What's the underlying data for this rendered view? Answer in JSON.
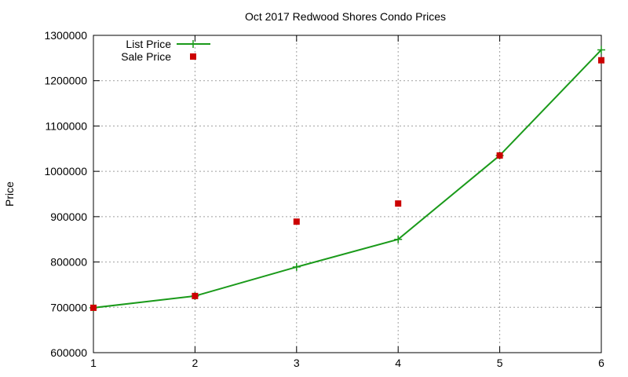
{
  "chart_data": {
    "type": "line",
    "title": "Oct 2017 Redwood Shores Condo Prices",
    "xlabel": "",
    "ylabel": "Price",
    "x": [
      1,
      2,
      3,
      4,
      5,
      6
    ],
    "xlim": [
      1,
      6
    ],
    "ylim": [
      600000,
      1300000
    ],
    "xticks": [
      1,
      2,
      3,
      4,
      5,
      6
    ],
    "yticks": [
      600000,
      700000,
      800000,
      900000,
      1000000,
      1100000,
      1200000,
      1300000
    ],
    "grid": true,
    "legend_position": "top-left",
    "series": [
      {
        "name": "List Price",
        "style": "line+cross",
        "color": "#1a9a1a",
        "values": [
          699000,
          725000,
          789000,
          850000,
          1035000,
          1268000
        ]
      },
      {
        "name": "Sale Price",
        "style": "square-marker",
        "color": "#cc0000",
        "values": [
          699000,
          725000,
          889000,
          929000,
          1035000,
          1245000
        ]
      }
    ]
  }
}
